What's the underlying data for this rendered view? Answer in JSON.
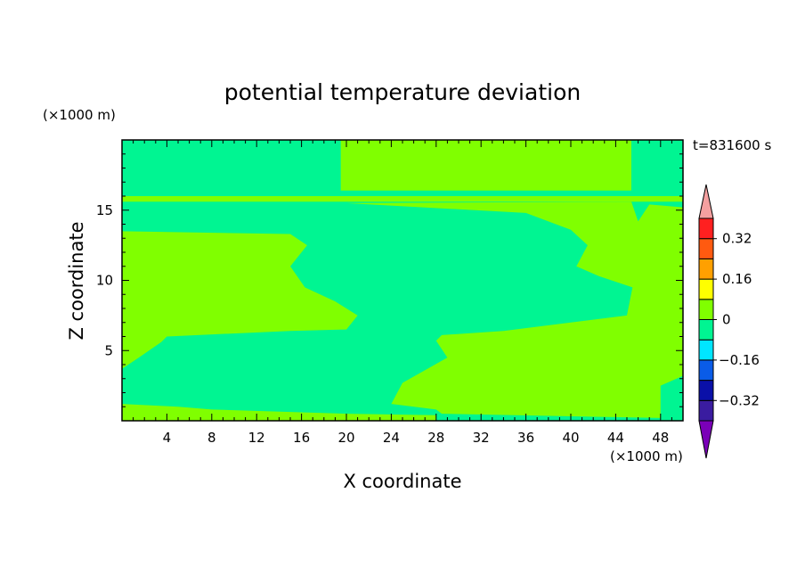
{
  "chart_data": {
    "type": "heatmap",
    "title": "potential temperature deviation",
    "xlabel": "X coordinate",
    "ylabel": "Z coordinate",
    "x_unit": "(×1000 m)",
    "y_unit": "(×1000 m)",
    "time_label": "t=831600 s",
    "xlim": [
      0,
      50
    ],
    "ylim": [
      0,
      20
    ],
    "x_ticks": [
      4,
      8,
      12,
      16,
      20,
      24,
      28,
      32,
      36,
      40,
      44,
      48
    ],
    "y_ticks": [
      5,
      10,
      15
    ],
    "colorbar": {
      "levels": [
        -0.4,
        -0.32,
        -0.24,
        -0.16,
        -0.08,
        0,
        0.08,
        0.16,
        0.24,
        0.32,
        0.4
      ],
      "labels": [
        -0.32,
        -0.16,
        0,
        0.16,
        0.32
      ],
      "colors": [
        "#3a1ca0",
        "#0a10a8",
        "#0a5ce8",
        "#00e6ff",
        "#00f592",
        "#80ff00",
        "#ffff00",
        "#ffa000",
        "#ff5a10",
        "#ff2020"
      ],
      "under_color": "#7a00b8",
      "over_color": "#f4a0a0"
    },
    "regions": [
      {
        "level": "0 to 0.08",
        "color": "#80ff00",
        "polygon": [
          [
            19.5,
            20
          ],
          [
            45.4,
            20
          ],
          [
            45.4,
            16.4
          ],
          [
            19.5,
            16.4
          ]
        ]
      },
      {
        "level": "0 to 0.08",
        "color": "#80ff00",
        "polygon": [
          [
            0,
            15.6
          ],
          [
            50,
            15.6
          ],
          [
            50,
            16.0
          ],
          [
            0,
            16.0
          ]
        ]
      },
      {
        "level": "0 to 0.08",
        "color": "#80ff00",
        "polygon": [
          [
            0,
            13.5
          ],
          [
            15,
            13.3
          ],
          [
            16.5,
            12.5
          ],
          [
            15,
            11
          ],
          [
            16.3,
            9.5
          ],
          [
            19,
            8.5
          ],
          [
            21,
            7.5
          ],
          [
            20,
            6.5
          ],
          [
            15,
            6.4
          ],
          [
            4,
            6.0
          ],
          [
            3.5,
            5.6
          ],
          [
            1.5,
            4.5
          ],
          [
            0,
            3.7
          ]
        ]
      },
      {
        "level": "0 to 0.08",
        "color": "#80ff00",
        "polygon": [
          [
            20,
            15.5
          ],
          [
            36,
            14.8
          ],
          [
            40,
            13.6
          ],
          [
            41.5,
            12.5
          ],
          [
            40.5,
            11
          ],
          [
            42.5,
            10.3
          ],
          [
            45.5,
            9.5
          ],
          [
            45,
            7.5
          ],
          [
            34,
            6.4
          ],
          [
            28.5,
            6.1
          ],
          [
            28,
            5.7
          ],
          [
            29,
            4.5
          ],
          [
            25,
            2.7
          ],
          [
            24,
            1.2
          ],
          [
            28,
            0.8
          ],
          [
            28.5,
            0.5
          ],
          [
            48,
            0.2
          ],
          [
            48,
            2.5
          ],
          [
            50,
            3.2
          ],
          [
            50,
            15.2
          ],
          [
            47,
            15.4
          ],
          [
            46,
            14.2
          ],
          [
            45.4,
            15.6
          ]
        ]
      },
      {
        "level": "0 to 0.08",
        "color": "#80ff00",
        "polygon": [
          [
            0,
            1.2
          ],
          [
            5,
            1.0
          ],
          [
            8,
            0.8
          ],
          [
            20,
            0.5
          ],
          [
            28,
            0.4
          ],
          [
            28,
            0.0
          ],
          [
            0,
            0.0
          ]
        ]
      }
    ]
  }
}
